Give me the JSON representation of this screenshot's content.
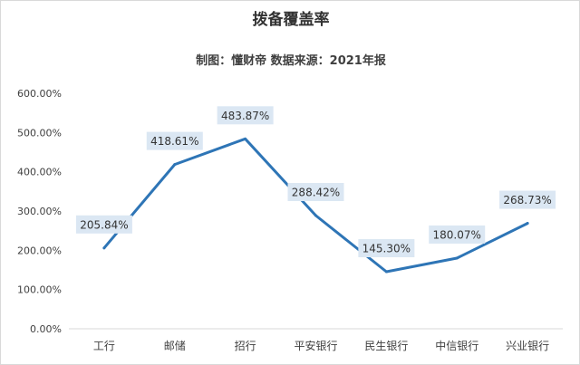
{
  "chart_data": {
    "type": "line",
    "title": "拨备覆盖率",
    "subtitle": "制图：懂财帝   数据来源：2021年报",
    "categories": [
      "工行",
      "邮储",
      "招行",
      "平安银行",
      "民生银行",
      "中信银行",
      "兴业银行"
    ],
    "series": [
      {
        "name": "拨备覆盖率",
        "values": [
          205.84,
          418.61,
          483.87,
          288.42,
          145.3,
          180.07,
          268.73
        ],
        "labels": [
          "205.84%",
          "418.61%",
          "483.87%",
          "288.42%",
          "145.30%",
          "180.07%",
          "268.73%"
        ],
        "color": "#2e75b6"
      }
    ],
    "yticks": [
      "0.00%",
      "100.00%",
      "200.00%",
      "300.00%",
      "400.00%",
      "500.00%",
      "600.00%"
    ],
    "ylim": [
      0,
      600
    ],
    "grid": false,
    "legend": "none"
  }
}
